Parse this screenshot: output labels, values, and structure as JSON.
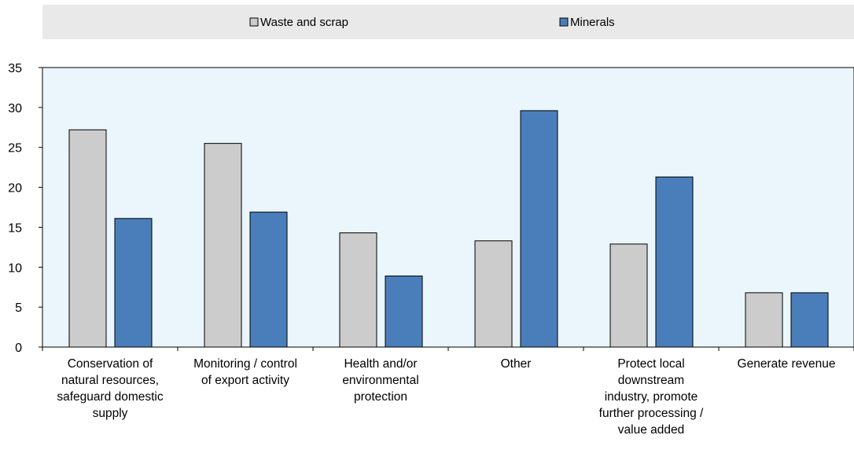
{
  "chart_data": {
    "type": "bar",
    "title": "",
    "xlabel": "",
    "ylabel": "",
    "ylim": [
      0,
      35
    ],
    "yticks": [
      0,
      5,
      10,
      15,
      20,
      25,
      30,
      35
    ],
    "grid": false,
    "legend_position": "top",
    "categories": [
      [
        "Conservation of",
        "natural resources,",
        "safeguard domestic",
        "supply"
      ],
      [
        "Monitoring  / control",
        "of export activity"
      ],
      [
        "Health and/or",
        "environmental",
        "protection"
      ],
      [
        "Other"
      ],
      [
        "Protect local",
        "downstream",
        "industry, promote",
        "further processing /",
        "value added"
      ],
      [
        "Generate revenue"
      ]
    ],
    "series": [
      {
        "name": "Waste and scrap",
        "color": "#cccccc",
        "values": [
          27.2,
          25.5,
          14.3,
          13.3,
          12.9,
          6.8
        ]
      },
      {
        "name": "Minerals",
        "color": "#4a7ebb",
        "values": [
          16.1,
          16.9,
          8.9,
          29.6,
          21.3,
          6.8
        ]
      }
    ],
    "colors": {
      "plot_background": "#eaf6fb",
      "legend_background": "#e9e9e9",
      "bar_stroke": "#000000"
    }
  }
}
